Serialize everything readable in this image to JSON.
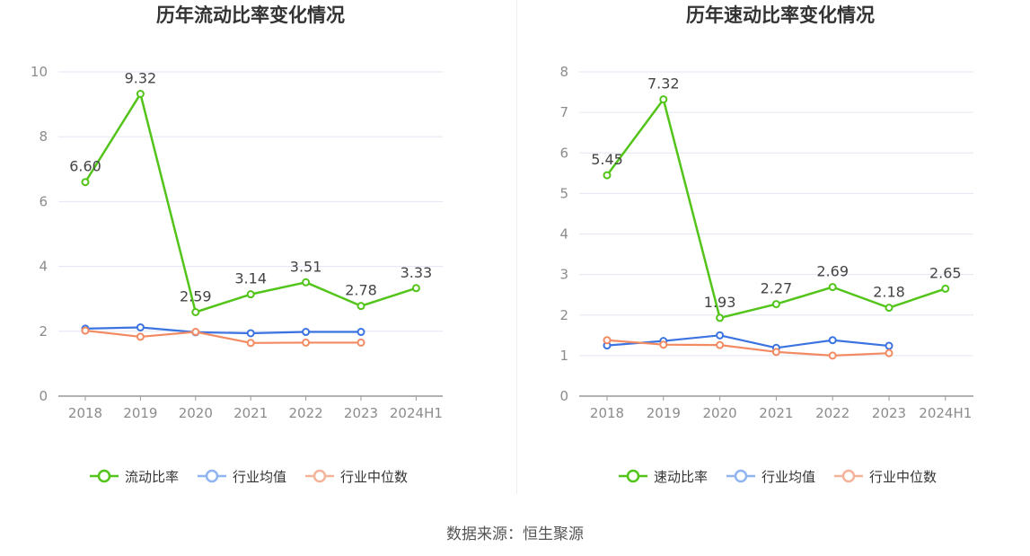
{
  "colors": {
    "main": "#52c41a",
    "avg": "#3b73e0",
    "median": "#f28b63",
    "avg_legend": "#8fb4f0",
    "median_legend": "#f5b39a",
    "grid": "#e3e6f3",
    "axis": "#999999",
    "tick_text": "#8c8c8c",
    "title": "#333333"
  },
  "chart_data": [
    {
      "type": "line",
      "title": "历年流动比率变化情况",
      "categories": [
        "2018",
        "2019",
        "2020",
        "2021",
        "2022",
        "2023",
        "2024H1"
      ],
      "ylim": [
        0,
        10
      ],
      "yticks": [
        0,
        2,
        4,
        6,
        8,
        10
      ],
      "grid": true,
      "legend_position": "bottom",
      "series": [
        {
          "name": "流动比率",
          "role": "main",
          "values": [
            6.6,
            9.32,
            2.59,
            3.14,
            3.51,
            2.78,
            3.33
          ],
          "labels": [
            "6.60",
            "9.32",
            "2.59",
            "3.14",
            "3.51",
            "2.78",
            "3.33"
          ]
        },
        {
          "name": "行业均值",
          "role": "avg",
          "values": [
            2.08,
            2.12,
            1.97,
            1.94,
            1.98,
            1.98,
            null
          ]
        },
        {
          "name": "行业中位数",
          "role": "median",
          "values": [
            2.02,
            1.83,
            1.98,
            1.64,
            1.65,
            1.65,
            null
          ]
        }
      ]
    },
    {
      "type": "line",
      "title": "历年速动比率变化情况",
      "categories": [
        "2018",
        "2019",
        "2020",
        "2021",
        "2022",
        "2023",
        "2024H1"
      ],
      "ylim": [
        0,
        8
      ],
      "yticks": [
        0,
        1,
        2,
        3,
        4,
        5,
        6,
        7,
        8
      ],
      "grid": true,
      "legend_position": "bottom",
      "series": [
        {
          "name": "速动比率",
          "role": "main",
          "values": [
            5.45,
            7.32,
            1.93,
            2.27,
            2.69,
            2.18,
            2.65
          ],
          "labels": [
            "5.45",
            "7.32",
            "1.93",
            "2.27",
            "2.69",
            "2.18",
            "2.65"
          ]
        },
        {
          "name": "行业均值",
          "role": "avg",
          "values": [
            1.25,
            1.36,
            1.5,
            1.19,
            1.38,
            1.24,
            null
          ]
        },
        {
          "name": "行业中位数",
          "role": "median",
          "values": [
            1.38,
            1.27,
            1.26,
            1.09,
            1.0,
            1.06,
            null
          ]
        }
      ]
    }
  ],
  "footer": {
    "source": "数据来源：恒生聚源"
  }
}
